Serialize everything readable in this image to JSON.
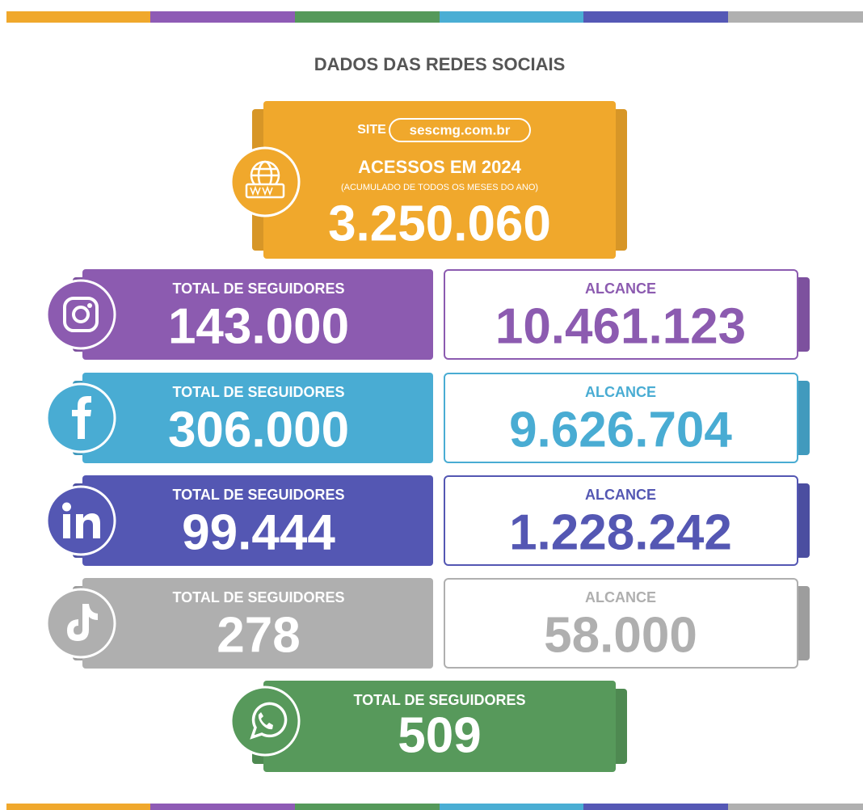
{
  "title": "DADOS DAS REDES SOCIAIS",
  "site": {
    "label": "SITE",
    "url": "sescmg.com.br",
    "heading": "ACESSOS EM 2024",
    "note": "(ACUMULADO DE TODOS OS MESES DO ANO)",
    "value": "3.250.060",
    "color": "#f0a82c"
  },
  "networks": [
    {
      "followers_label": "TOTAL DE SEGUIDORES",
      "followers": "143.000",
      "reach_label": "ALCANCE",
      "reach": "10.461.123",
      "color": "#8c5bb0"
    },
    {
      "followers_label": "TOTAL DE SEGUIDORES",
      "followers": "306.000",
      "reach_label": "ALCANCE",
      "reach": "9.626.704",
      "color": "#49acd3"
    },
    {
      "followers_label": "TOTAL DE SEGUIDORES",
      "followers": "99.444",
      "reach_label": "ALCANCE",
      "reach": "1.228.242",
      "color": "#5457b3"
    },
    {
      "followers_label": "TOTAL DE SEGUIDORES",
      "followers": "278",
      "reach_label": "ALCANCE",
      "reach": "58.000",
      "color": "#afafaf"
    }
  ],
  "whatsapp": {
    "followers_label": "TOTAL DE SEGUIDORES",
    "followers": "509",
    "color": "#57995b"
  }
}
